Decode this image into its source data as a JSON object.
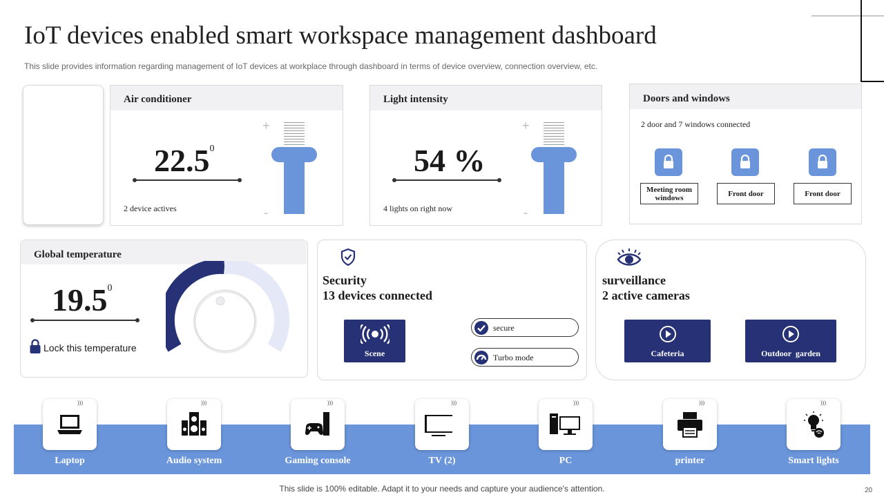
{
  "header": {
    "title": "IoT devices enabled smart workspace management dashboard",
    "subtitle": "This slide provides information regarding management of IoT devices at workplace through dashboard in terms of device overview, connection overview, etc."
  },
  "air_conditioner": {
    "title": "Air conditioner",
    "value": "22.5",
    "unit_sup": "0",
    "status": "2 device actives",
    "plus": "+",
    "minus": "-"
  },
  "light_intensity": {
    "title": "Light intensity",
    "value": "54 %",
    "status": "4 lights on right now",
    "plus": "+",
    "minus": "-"
  },
  "doors_windows": {
    "title": "Doors and windows",
    "status": "2 door and 7 windows connected",
    "items": [
      {
        "label": "Meeting room windows",
        "icon": "lock-icon"
      },
      {
        "label": "Front door",
        "icon": "lock-icon"
      },
      {
        "label": "Front door",
        "icon": "lock-icon"
      }
    ]
  },
  "global_temperature": {
    "title": "Global temperature",
    "value": "19.5",
    "unit_sup": "0",
    "lock_label": "Lock this temperature",
    "knob_level": 0.5
  },
  "security": {
    "icon": "shield-check-icon",
    "title": "Security",
    "subtitle": "13 devices connected",
    "scene_label": "Scene",
    "toggles": [
      {
        "label": "secure",
        "icon": "check-icon"
      },
      {
        "label": "Turbo mode",
        "icon": "speed-icon"
      }
    ]
  },
  "surveillance": {
    "icon": "eye-icon",
    "title": "surveillance",
    "subtitle": "2 active cameras",
    "cameras": [
      {
        "label": "Cafeteria",
        "icon": "play-icon"
      },
      {
        "label": "Outdoor  garden",
        "icon": "play-icon"
      }
    ]
  },
  "devices": [
    {
      "label": "Laptop",
      "icon": "laptop-icon"
    },
    {
      "label": "Audio system",
      "icon": "speaker-icon"
    },
    {
      "label": "Gaming console",
      "icon": "gamepad-icon"
    },
    {
      "label": "TV (2)",
      "icon": "tv-icon"
    },
    {
      "label": "PC",
      "icon": "pc-icon"
    },
    {
      "label": "printer",
      "icon": "printer-icon"
    },
    {
      "label": "Smart lights",
      "icon": "bulb-icon"
    }
  ],
  "footer": {
    "text": "This slide is 100% editable. Adapt it to your needs and capture your audience's attention.",
    "page": "20"
  },
  "colors": {
    "accent_blue": "#6a95db",
    "navy": "#263176",
    "header_gray": "#f1f1f3"
  }
}
